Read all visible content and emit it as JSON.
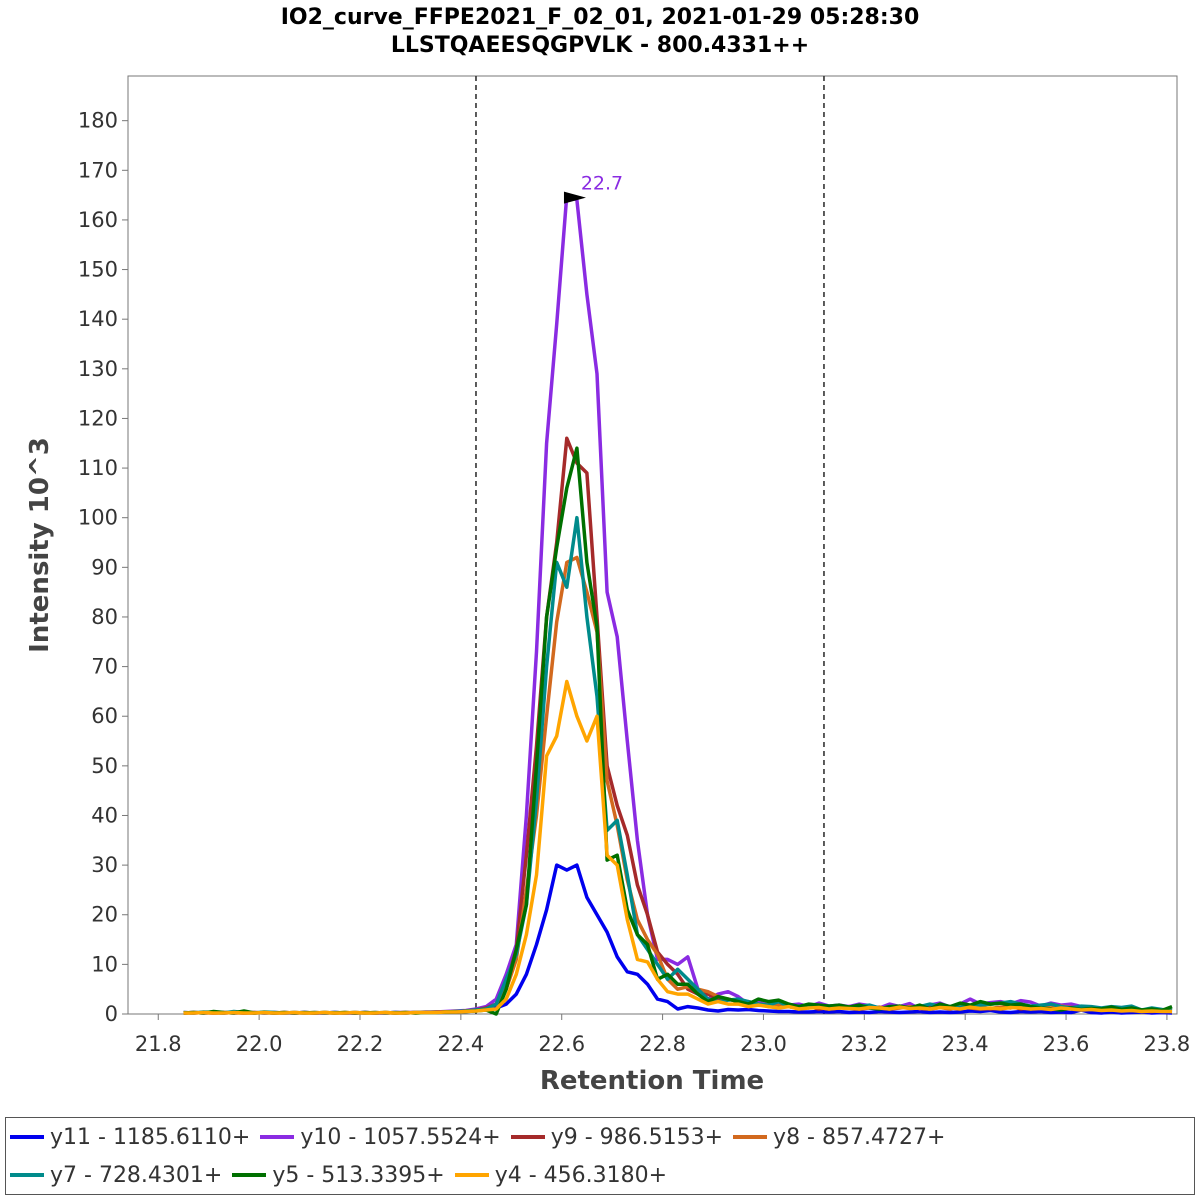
{
  "chart_data": {
    "type": "line",
    "title": "IO2_curve_FFPE2021_F_02_01, 2021-01-29 05:28:30",
    "subtitle": "LLSTQAEESQGPVLK - 800.4331++",
    "xlabel": "Retention Time",
    "ylabel": "Intensity 10^3",
    "xlim": [
      21.74,
      23.82
    ],
    "ylim": [
      0,
      189
    ],
    "xticks": [
      "21.8",
      "22.0",
      "22.2",
      "22.4",
      "22.6",
      "22.8",
      "23.0",
      "23.2",
      "23.4",
      "23.6",
      "23.8"
    ],
    "yticks": [
      "0",
      "10",
      "20",
      "30",
      "40",
      "50",
      "60",
      "70",
      "80",
      "90",
      "100",
      "110",
      "120",
      "130",
      "140",
      "150",
      "160",
      "170",
      "180"
    ],
    "boundaries": [
      22.43,
      23.12
    ],
    "peak_annotation": {
      "text": "22.7",
      "x": 22.66,
      "y": 164.5,
      "color": "#8A2BE2"
    },
    "legend_placement": "bottom",
    "x": [
      21.85,
      21.87,
      21.89,
      21.91,
      21.93,
      21.95,
      21.97,
      21.99,
      22.01,
      22.03,
      22.05,
      22.07,
      22.09,
      22.11,
      22.13,
      22.15,
      22.17,
      22.19,
      22.21,
      22.23,
      22.25,
      22.27,
      22.29,
      22.31,
      22.33,
      22.35,
      22.37,
      22.39,
      22.41,
      22.43,
      22.45,
      22.47,
      22.49,
      22.51,
      22.53,
      22.55,
      22.57,
      22.59,
      22.61,
      22.63,
      22.65,
      22.67,
      22.69,
      22.71,
      22.73,
      22.75,
      22.77,
      22.79,
      22.81,
      22.83,
      22.85,
      22.87,
      22.89,
      22.91,
      22.93,
      22.95,
      22.97,
      22.99,
      23.01,
      23.03,
      23.05,
      23.07,
      23.09,
      23.11,
      23.13,
      23.15,
      23.17,
      23.19,
      23.21,
      23.23,
      23.25,
      23.27,
      23.29,
      23.31,
      23.33,
      23.35,
      23.37,
      23.39,
      23.41,
      23.43,
      23.45,
      23.47,
      23.49,
      23.51,
      23.53,
      23.55,
      23.57,
      23.59,
      23.61,
      23.63,
      23.65,
      23.67,
      23.69,
      23.71,
      23.73,
      23.75,
      23.77,
      23.79,
      23.81
    ],
    "series": [
      {
        "name": "y11 - 1185.6110+",
        "color": "#0000EE",
        "values": [
          0.2,
          0.3,
          0.2,
          0.3,
          0.2,
          0.3,
          0.2,
          0.3,
          0.2,
          0.3,
          0.2,
          0.2,
          0.3,
          0.2,
          0.2,
          0.3,
          0.2,
          0.2,
          0.3,
          0.2,
          0.2,
          0.3,
          0.2,
          0.3,
          0.3,
          0.3,
          0.4,
          0.4,
          0.5,
          0.7,
          0.9,
          1.2,
          2,
          4,
          8,
          14,
          21,
          30,
          29,
          30,
          23.5,
          20,
          16.5,
          11.5,
          8.5,
          8,
          6,
          3,
          2.5,
          1,
          1.5,
          1.2,
          0.8,
          0.6,
          0.9,
          0.8,
          0.9,
          0.7,
          0.6,
          0.5,
          0.5,
          0.4,
          0.4,
          0.5,
          0.4,
          0.5,
          0.3,
          0.4,
          0.3,
          0.5,
          0.4,
          0.3,
          0.4,
          0.5,
          0.3,
          0.4,
          0.3,
          0.4,
          0.6,
          0.5,
          0.7,
          0.4,
          0.3,
          0.5,
          0.4,
          0.5,
          0.3,
          0.4,
          0.3,
          0.8,
          0.3,
          0.2,
          0.4,
          0.2,
          0.3,
          0.4,
          0.2,
          0.3,
          0.2
        ]
      },
      {
        "name": "y10 - 1057.5524+",
        "color": "#8A2BE2",
        "values": [
          0.3,
          0.2,
          0.3,
          0.2,
          0.3,
          0.2,
          0.3,
          0.2,
          0.3,
          0.2,
          0.3,
          0.2,
          0.3,
          0.2,
          0.2,
          0.3,
          0.2,
          0.2,
          0.3,
          0.2,
          0.2,
          0.3,
          0.3,
          0.3,
          0.4,
          0.4,
          0.5,
          0.6,
          0.7,
          1,
          1.5,
          3,
          8,
          14,
          40,
          73,
          115,
          139,
          165,
          164,
          145,
          129,
          85,
          76,
          55,
          35,
          20,
          11,
          11,
          10,
          11.5,
          5,
          3,
          4,
          4.5,
          3.5,
          2,
          2.3,
          1.8,
          2,
          1.8,
          2,
          1.5,
          2.2,
          1.6,
          1.8,
          1.5,
          2,
          1.7,
          1.2,
          2,
          1.5,
          2.1,
          1,
          1.8,
          2.2,
          1.4,
          2,
          3,
          2,
          2.3,
          2.5,
          2,
          2.7,
          2.4,
          1.6,
          2.2,
          1.8,
          2,
          1.5,
          1.2,
          1,
          0.8,
          1,
          0.9,
          0.7,
          0.8,
          0.6,
          0.7
        ]
      },
      {
        "name": "y9 - 986.5153+",
        "color": "#A52A2A",
        "values": [
          0.2,
          0.2,
          0.3,
          0.2,
          0.2,
          0.3,
          0.2,
          0.2,
          0.3,
          0.2,
          0.2,
          0.3,
          0.2,
          0.2,
          0.3,
          0.2,
          0.2,
          0.3,
          0.2,
          0.2,
          0.3,
          0.2,
          0.2,
          0.3,
          0.3,
          0.4,
          0.4,
          0.5,
          0.6,
          0.8,
          1.2,
          2,
          6,
          13,
          32,
          54,
          80,
          95,
          116,
          111,
          109,
          80,
          50,
          42,
          36,
          26,
          20,
          12.5,
          10,
          8,
          5,
          4,
          4,
          3,
          3,
          2.5,
          2,
          2,
          1.5,
          1.8,
          1.5,
          1.2,
          1.5,
          1,
          1.3,
          1.2,
          1.5,
          1,
          1.6,
          1.2,
          1,
          1.5,
          1.2,
          1.3,
          1.4,
          1.6,
          1,
          1.8,
          1.2,
          1.5,
          1,
          1.2,
          1.6,
          1,
          1.4,
          1.2,
          1,
          1.1,
          1.3,
          1.2,
          1,
          0.9,
          0.8,
          0.7,
          1,
          0.6,
          0.5,
          0.7,
          0.6
        ]
      },
      {
        "name": "y8 - 857.4727+",
        "color": "#D2691E",
        "values": [
          0.2,
          0.3,
          0.2,
          0.2,
          0.3,
          0.2,
          0.2,
          0.3,
          0.2,
          0.2,
          0.3,
          0.2,
          0.2,
          0.3,
          0.2,
          0.2,
          0.3,
          0.2,
          0.2,
          0.3,
          0.2,
          0.2,
          0.3,
          0.2,
          0.3,
          0.3,
          0.4,
          0.5,
          0.6,
          0.7,
          1,
          2,
          5,
          11,
          25,
          40,
          60,
          79,
          91,
          92,
          85,
          77,
          47,
          38,
          27,
          19,
          15,
          12,
          7,
          5,
          5.5,
          5,
          4.5,
          3.5,
          3,
          2.5,
          2.5,
          2,
          1.8,
          2,
          1.5,
          1.2,
          1.5,
          1.3,
          1,
          1.2,
          1.5,
          1,
          1.2,
          1.4,
          1,
          1.2,
          1.5,
          1.1,
          1,
          1.3,
          1,
          1.5,
          1.2,
          1,
          1.1,
          1.4,
          1.2,
          1.8,
          1,
          1.5,
          1.2,
          1.6,
          1.3,
          1.1,
          1,
          0.9,
          0.8,
          1,
          0.7,
          0.8,
          0.6,
          0.7,
          0.5
        ]
      },
      {
        "name": "y7 - 728.4301+",
        "color": "#008B8B",
        "values": [
          0.3,
          0.2,
          0.4,
          0.3,
          0.2,
          0.5,
          0.3,
          0.2,
          0.4,
          0.3,
          0.2,
          0.3,
          0.2,
          0.3,
          0.2,
          0.3,
          0.2,
          0.3,
          0.2,
          0.3,
          0.2,
          0.3,
          0.2,
          0.3,
          0.3,
          0.3,
          0.4,
          0.5,
          0.6,
          0.8,
          1,
          2,
          7,
          12,
          22,
          43,
          70,
          91,
          86,
          100,
          80,
          64,
          37,
          39,
          28,
          16,
          13,
          10,
          7,
          9,
          7,
          5,
          3,
          2.5,
          2.8,
          3,
          2.5,
          2,
          1.8,
          2.5,
          1.5,
          1.6,
          1.2,
          1.8,
          1.6,
          1.7,
          1.4,
          1.5,
          1.8,
          1.2,
          1,
          1.6,
          1.1,
          1.5,
          2,
          1.6,
          1.2,
          1.4,
          1.6,
          1.8,
          2,
          2.2,
          2.5,
          2,
          1.6,
          1.8,
          2,
          1.5,
          1.2,
          1.6,
          1.5,
          1.2,
          1.5,
          1.3,
          1.6,
          0.8,
          1.2,
          0.9,
          0.7
        ]
      },
      {
        "name": "y5 - 513.3395+",
        "color": "#007000",
        "values": [
          0.2,
          0.3,
          0.2,
          0.5,
          0.3,
          0.2,
          0.6,
          0.2,
          0.3,
          0.2,
          0.3,
          0.2,
          0.3,
          0.2,
          0.3,
          0.2,
          0.3,
          0.2,
          0.3,
          0.2,
          0.3,
          0.2,
          0.3,
          0.2,
          0.3,
          0.3,
          0.4,
          0.4,
          0.5,
          0.6,
          0.8,
          0,
          5,
          13,
          22,
          50,
          80,
          94,
          106,
          114,
          91,
          78,
          31,
          32,
          21,
          16,
          14,
          7,
          8,
          6,
          6,
          4,
          2.5,
          3.5,
          3,
          2.5,
          2,
          3,
          2.5,
          2.8,
          2,
          1.5,
          2,
          1.8,
          1.6,
          1.8,
          1.4,
          1.8,
          1.2,
          1,
          1.5,
          1.6,
          1.2,
          1.8,
          1,
          2,
          1.5,
          2.2,
          1.8,
          2.5,
          2,
          2.2,
          1.8,
          2,
          1.5,
          1.2,
          1,
          0.8,
          1.2,
          0.9,
          1.1,
          1,
          1.4,
          0.9,
          1.2,
          0.8,
          1,
          0.7,
          1.5
        ]
      },
      {
        "name": "y4 - 456.3180+",
        "color": "#FFA500",
        "values": [
          0.2,
          0.2,
          0.3,
          0.2,
          0.2,
          0.3,
          0.2,
          0.2,
          0.3,
          0.2,
          0.2,
          0.3,
          0.2,
          0.2,
          0.3,
          0.2,
          0.2,
          0.3,
          0.2,
          0.2,
          0.3,
          0.2,
          0.2,
          0.3,
          0.3,
          0.3,
          0.4,
          0.4,
          0.5,
          0.6,
          0.8,
          1,
          3,
          8,
          16,
          28,
          52,
          56,
          67,
          60,
          55,
          60,
          32,
          30,
          19,
          11,
          10.5,
          7,
          4.5,
          4,
          4,
          3,
          2,
          2.5,
          2,
          2,
          1.5,
          1.8,
          1.5,
          1.2,
          1.5,
          1,
          1.2,
          1.3,
          1,
          1.2,
          1.1,
          1,
          1.3,
          1.2,
          1,
          1.4,
          1.1,
          1.2,
          1,
          1.3,
          1.2,
          1,
          1.4,
          1.1,
          1.2,
          1,
          1.3,
          1.2,
          1,
          1.1,
          0.9,
          1.2,
          1,
          0.8,
          0.9,
          0.7,
          0.8,
          0.6,
          0.7,
          0.5,
          0.6,
          0.5,
          0.5
        ]
      }
    ]
  }
}
